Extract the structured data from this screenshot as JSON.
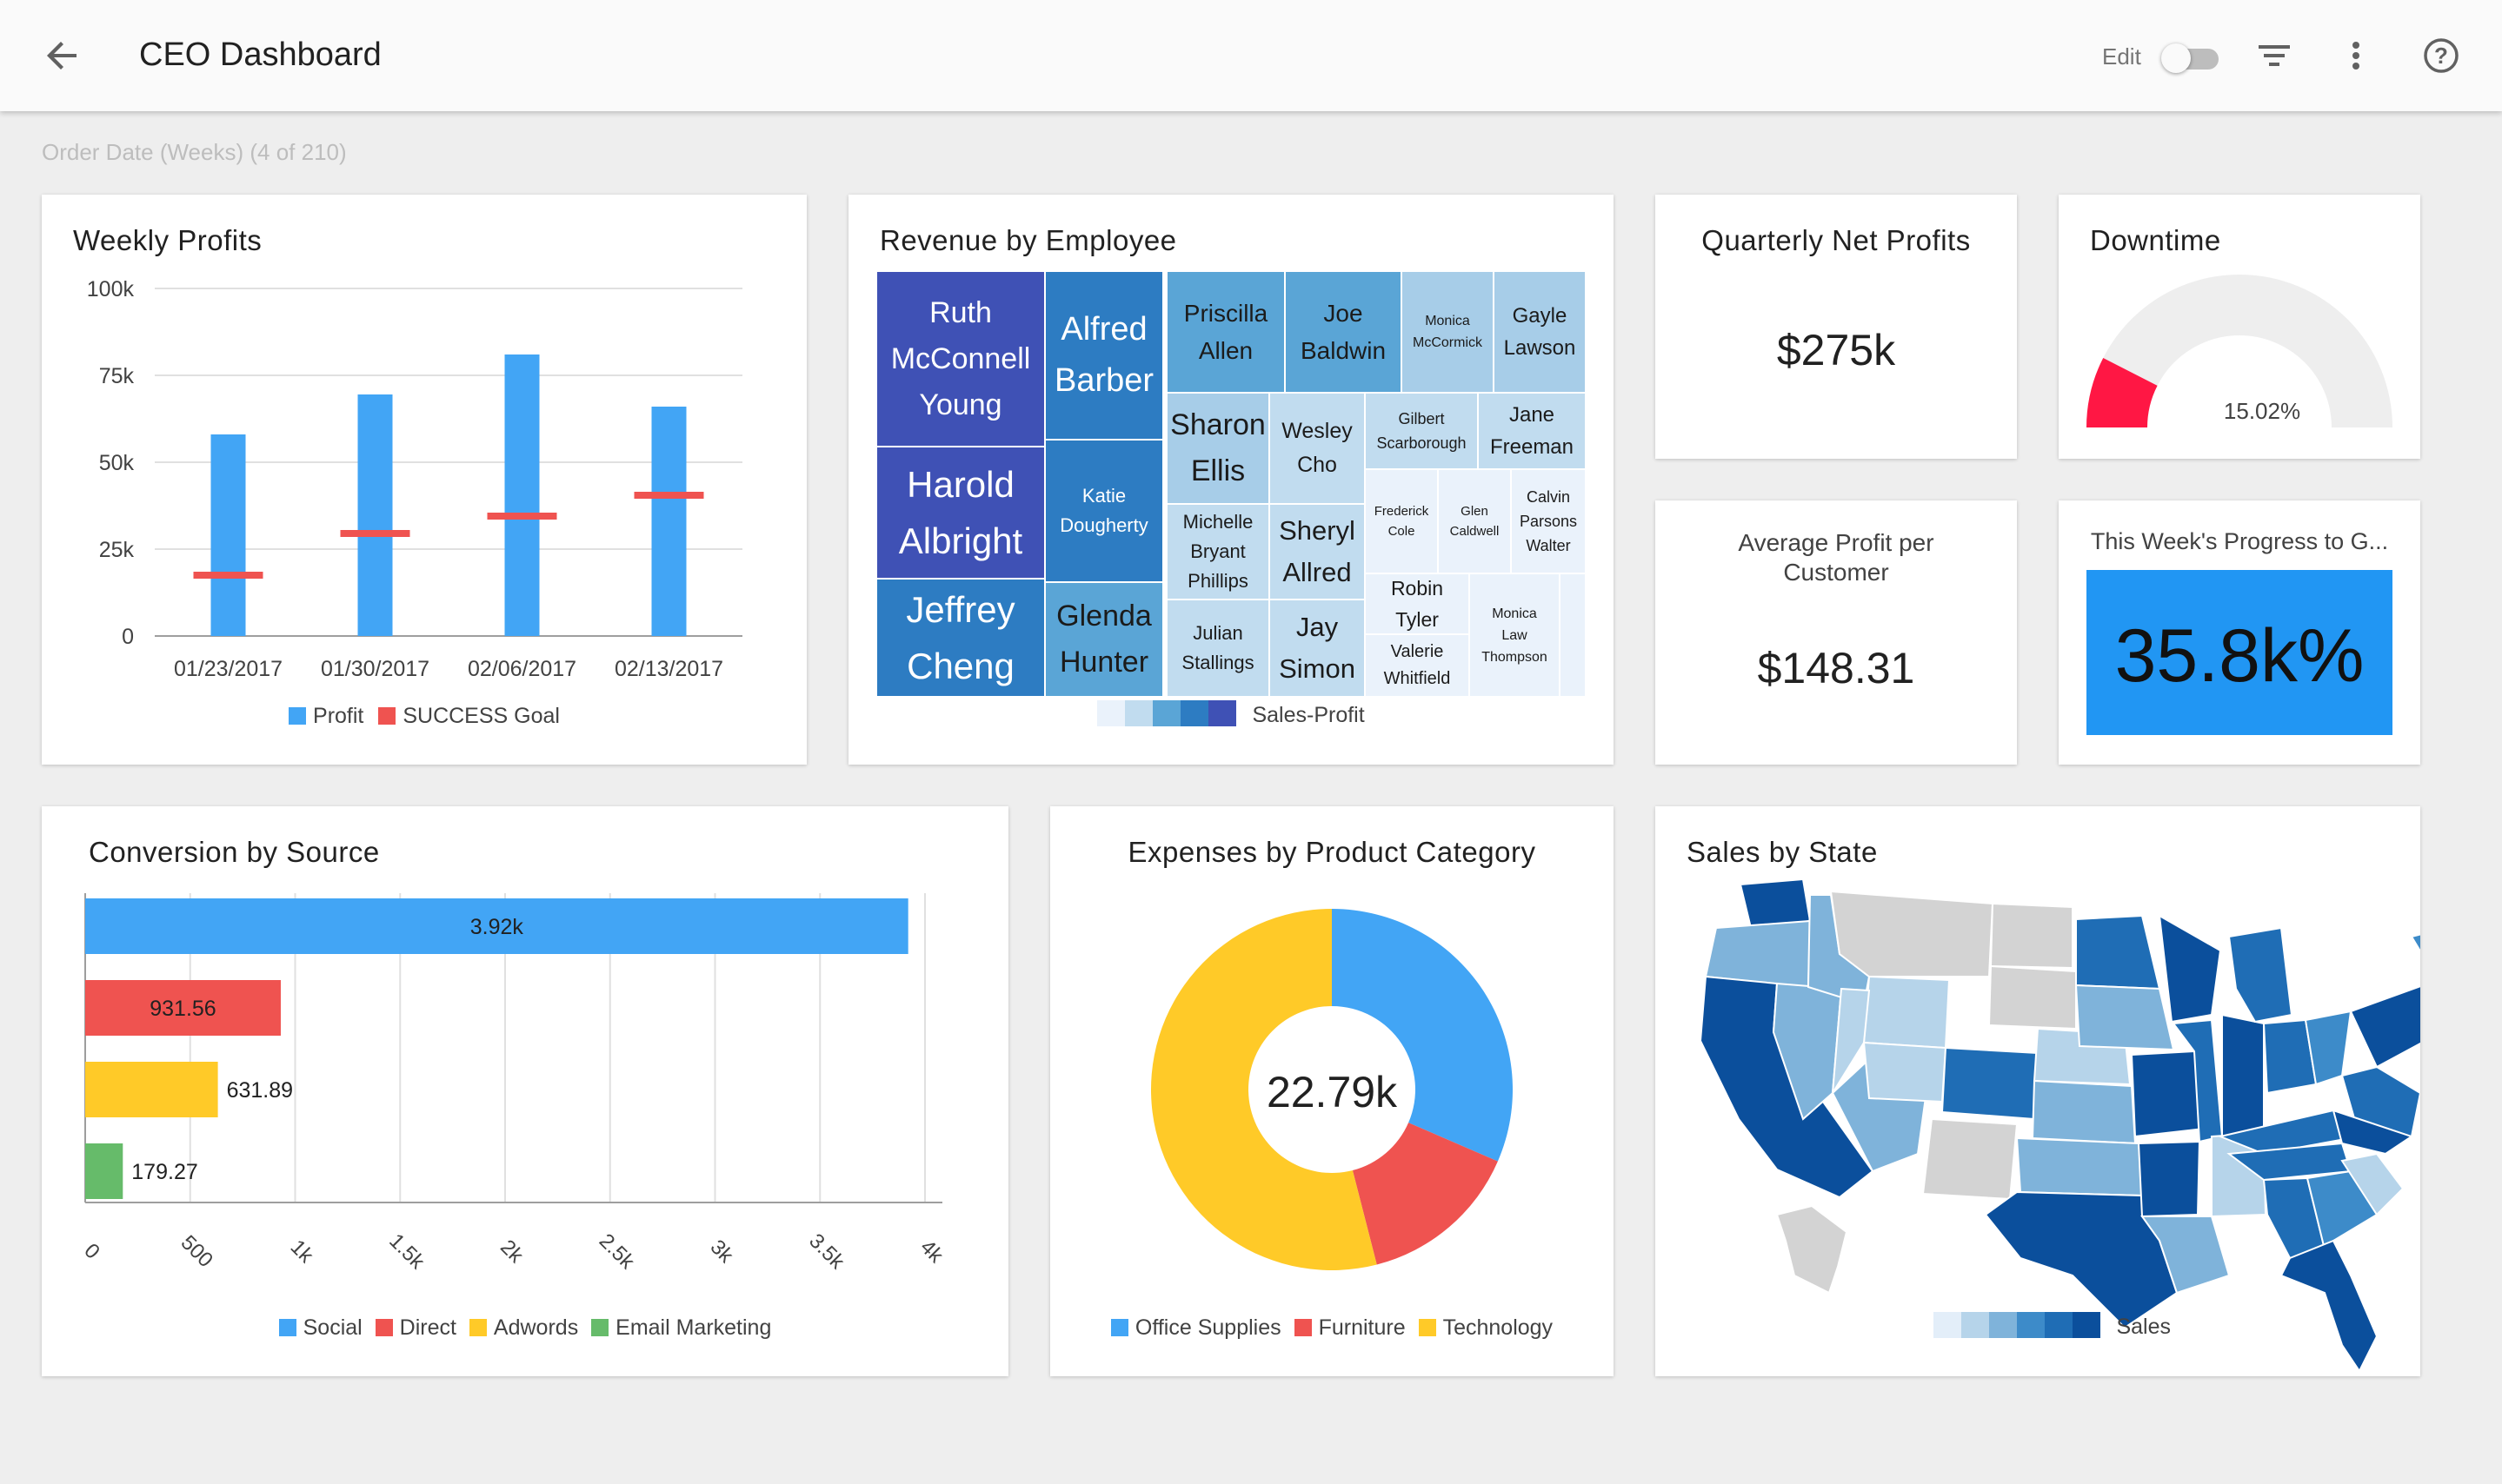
{
  "header": {
    "title": "CEO Dashboard",
    "edit_label": "Edit",
    "icons": [
      "back-arrow-icon",
      "toggle-switch",
      "filter-icon",
      "more-vert-icon",
      "help-icon"
    ]
  },
  "filter_bar": {
    "text": "Order Date (Weeks) (4 of 210)"
  },
  "colors": {
    "blue": "#42a5f5",
    "red": "#ef5350",
    "yellow": "#ffca28",
    "green": "#66bb6a",
    "kpi_blue": "#2196f3",
    "gauge_red": "#ff1744"
  },
  "weekly_profits": {
    "title": "Weekly Profits",
    "chart_data": {
      "type": "bar",
      "categories": [
        "01/23/2017",
        "01/30/2017",
        "02/06/2017",
        "02/13/2017"
      ],
      "series": [
        {
          "name": "Profit",
          "values": [
            58000,
            69500,
            81000,
            66000
          ]
        },
        {
          "name": "SUCCESS Goal",
          "values": [
            17500,
            29500,
            34500,
            40500
          ]
        }
      ],
      "y_ticks": [
        "0",
        "25k",
        "50k",
        "75k",
        "100k"
      ],
      "ylim": [
        0,
        100000
      ],
      "grid": true,
      "legend": "bottom"
    }
  },
  "revenue_by_employee": {
    "title": "Revenue by Employee",
    "legend_label": "Sales-Profit",
    "chart_data": {
      "type": "treemap",
      "cells": [
        {
          "lines": [
            "Ruth",
            "McConnell",
            "Young"
          ],
          "color": "#3f51b5",
          "light": true
        },
        {
          "lines": [
            "Alfred",
            "Barber"
          ],
          "color": "#2d7cc2",
          "light": true
        },
        {
          "lines": [
            "Priscilla",
            "Allen"
          ],
          "color": "#5aa5d6",
          "light": false
        },
        {
          "lines": [
            "Joe",
            "Baldwin"
          ],
          "color": "#5aa5d6",
          "light": false
        },
        {
          "lines": [
            "Monica",
            "McCormick"
          ],
          "color": "#a7cde8",
          "light": false
        },
        {
          "lines": [
            "Gayle",
            "Lawson"
          ],
          "color": "#a7cde8",
          "light": false
        },
        {
          "lines": [
            "Harold",
            "Albright"
          ],
          "color": "#3f51b5",
          "light": true
        },
        {
          "lines": [
            "Katie",
            "Dougherty"
          ],
          "color": "#2d7cc2",
          "light": true
        },
        {
          "lines": [
            "Sharon",
            "Ellis"
          ],
          "color": "#a7cde8",
          "light": false
        },
        {
          "lines": [
            "Wesley",
            "Cho"
          ],
          "color": "#c1dcef",
          "light": false
        },
        {
          "lines": [
            "Gilbert",
            "Scarborough"
          ],
          "color": "#c1dcef",
          "light": false
        },
        {
          "lines": [
            "Jane",
            "Freeman"
          ],
          "color": "#c1dcef",
          "light": false
        },
        {
          "lines": [
            "Frederick",
            "Cole"
          ],
          "color": "#eaf2fb",
          "light": false
        },
        {
          "lines": [
            "Glen",
            "Caldwell"
          ],
          "color": "#eaf2fb",
          "light": false
        },
        {
          "lines": [
            "Calvin",
            "Parsons",
            "Walter"
          ],
          "color": "#eaf2fb",
          "light": false
        },
        {
          "lines": [
            "Jeffrey",
            "Cheng"
          ],
          "color": "#2d7cc2",
          "light": true
        },
        {
          "lines": [
            "Glenda",
            "Hunter"
          ],
          "color": "#5aa5d6",
          "light": false
        },
        {
          "lines": [
            "Michelle",
            "Bryant",
            "Phillips"
          ],
          "color": "#c1dcef",
          "light": false
        },
        {
          "lines": [
            "Sheryl",
            "Allred"
          ],
          "color": "#c1dcef",
          "light": false
        },
        {
          "lines": [
            "Julian",
            "Stallings"
          ],
          "color": "#c1dcef",
          "light": false
        },
        {
          "lines": [
            "Jay",
            "Simon"
          ],
          "color": "#c1dcef",
          "light": false
        },
        {
          "lines": [
            "Robin",
            "Tyler"
          ],
          "color": "#eaf2fb",
          "light": false
        },
        {
          "lines": [
            "Valerie",
            "Whitfield"
          ],
          "color": "#eaf2fb",
          "light": false
        },
        {
          "lines": [
            "Monica",
            "Law",
            "Thompson"
          ],
          "color": "#eaf2fb",
          "light": false
        },
        {
          "lines": [],
          "color": "#eaf2fb",
          "light": false
        }
      ],
      "scale_colors": [
        "#eaf2fb",
        "#c1dcef",
        "#5aa5d6",
        "#2d7cc2",
        "#3f51b5"
      ]
    }
  },
  "quarterly_net_profits": {
    "title": "Quarterly Net Profits",
    "value": "$275k"
  },
  "downtime": {
    "title": "Downtime",
    "value_label": "15.02%",
    "chart_data": {
      "type": "gauge",
      "value": 15.02,
      "range": [
        0,
        100
      ]
    }
  },
  "average_profit": {
    "title_line1": "Average Profit per",
    "title_line2": "Customer",
    "value": "$148.31"
  },
  "weekly_progress": {
    "title": "This Week's Progress to G...",
    "value": "35.8k%"
  },
  "conversion_by_source": {
    "title": "Conversion by Source",
    "chart_data": {
      "type": "bar",
      "orientation": "horizontal",
      "categories": [
        "Social",
        "Direct",
        "Adwords",
        "Email Marketing"
      ],
      "values": [
        3920,
        931.56,
        631.89,
        179.27
      ],
      "value_labels": [
        "3.92k",
        "931.56",
        "631.89",
        "179.27"
      ],
      "x_ticks": [
        "0",
        "500",
        "1k",
        "1.5k",
        "2k",
        "2.5k",
        "3k",
        "3.5k",
        "4k"
      ],
      "xlim": [
        0,
        4000
      ],
      "grid": true,
      "legend": "bottom"
    }
  },
  "expenses_by_category": {
    "title": "Expenses by Product Category",
    "center_label": "22.79k",
    "chart_data": {
      "type": "pie",
      "donut": true,
      "categories": [
        "Office Supplies",
        "Furniture",
        "Technology"
      ],
      "values": [
        31.5,
        14.5,
        54.0
      ],
      "legend": "bottom"
    }
  },
  "sales_by_state": {
    "title": "Sales by State",
    "legend_label": "Sales",
    "scale_colors": [
      "#e3eef9",
      "#b6d4ea",
      "#7fb3da",
      "#3d8bc9",
      "#1f6db5",
      "#0b4f9c"
    ]
  }
}
